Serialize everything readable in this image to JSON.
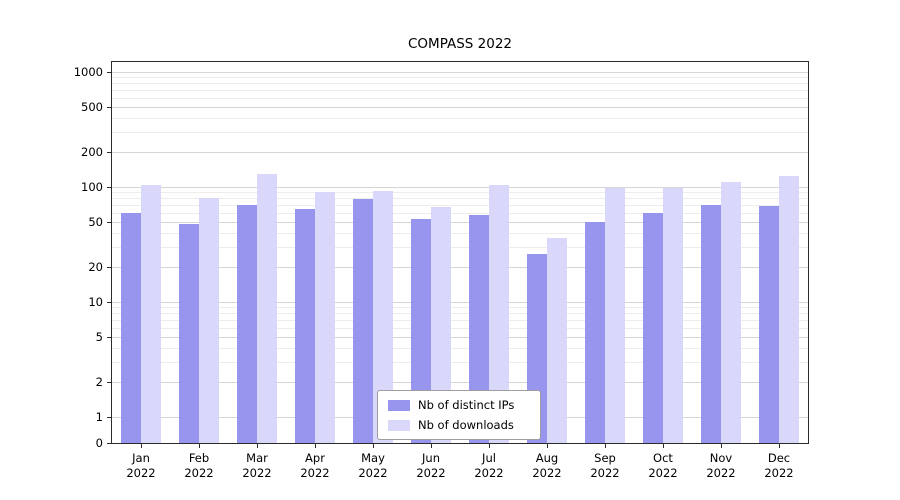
{
  "chart_data": {
    "type": "bar",
    "title": "COMPASS 2022",
    "scale": "symlog",
    "grid": true,
    "legend_position": "bottom-center",
    "year": "2022",
    "categories": [
      "Jan",
      "Feb",
      "Mar",
      "Apr",
      "May",
      "Jun",
      "Jul",
      "Aug",
      "Sep",
      "Oct",
      "Nov",
      "Dec"
    ],
    "series": [
      {
        "name": "Nb of distinct IPs",
        "color": "#9895ee",
        "values": [
          60,
          48,
          70,
          65,
          78,
          53,
          57,
          26,
          50,
          60,
          70,
          68
        ]
      },
      {
        "name": "Nb of downloads",
        "color": "#d9d7fa",
        "values": [
          105,
          80,
          130,
          90,
          93,
          67,
          105,
          36,
          98,
          98,
          110,
          125
        ]
      }
    ],
    "y_ticks": [
      0,
      1,
      2,
      5,
      10,
      20,
      50,
      100,
      200,
      500,
      1000
    ],
    "y_tick_labels": [
      "0",
      "1",
      "2",
      "5",
      "10",
      "20",
      "50",
      "100",
      "200",
      "500",
      "1000"
    ],
    "ylim": [
      0,
      1000
    ],
    "xlabel": "",
    "ylabel": ""
  }
}
